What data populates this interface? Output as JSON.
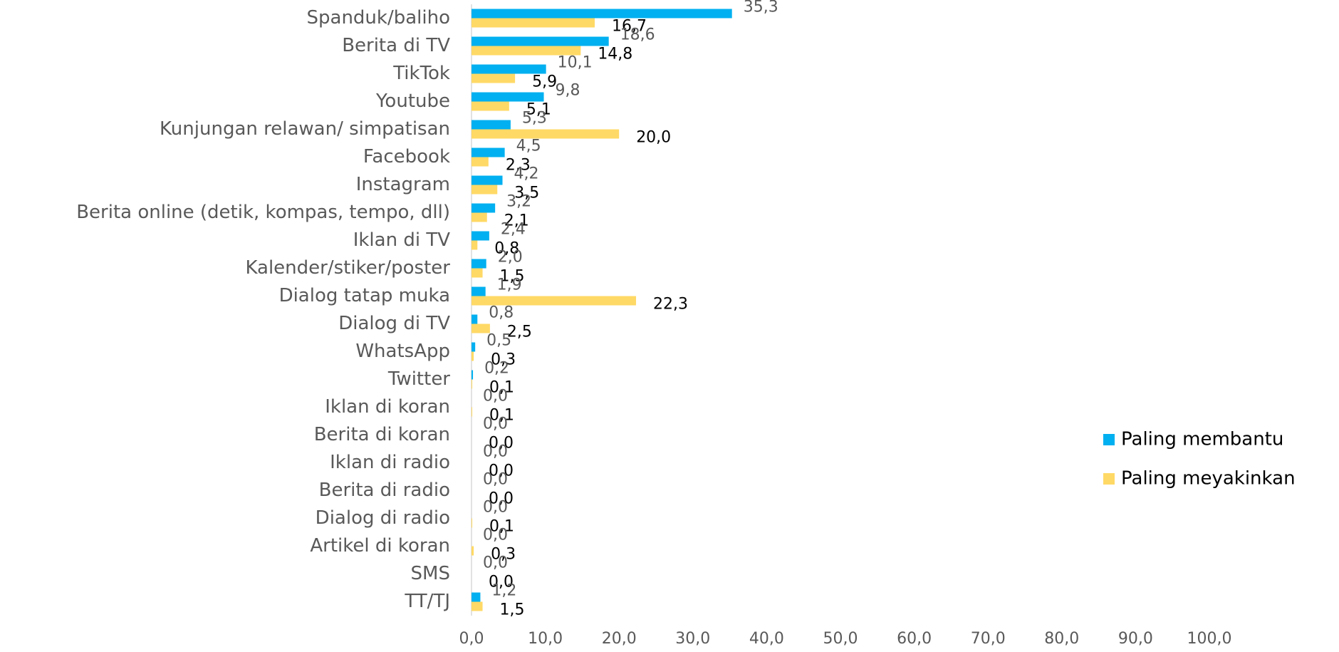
{
  "chart_data": {
    "type": "hbar",
    "categories": [
      "Spanduk/baliho",
      "Berita di TV",
      "TikTok",
      "Youtube",
      "Kunjungan relawan/ simpatisan",
      "Facebook",
      "Instagram",
      "Berita online (detik, kompas, tempo, dll)",
      "Iklan di TV",
      "Kalender/stiker/poster",
      "Dialog tatap muka",
      "Dialog di TV",
      "WhatsApp",
      "Twitter",
      "Iklan di koran",
      "Berita di koran",
      "Iklan di radio",
      "Berita di radio",
      "Dialog di radio",
      "Artikel di koran",
      "SMS",
      "TT/TJ"
    ],
    "series": [
      {
        "name": "Paling membantu",
        "color": "#00b0f0",
        "values": [
          35.3,
          18.6,
          10.1,
          9.8,
          5.3,
          4.5,
          4.2,
          3.2,
          2.4,
          2.0,
          1.9,
          0.8,
          0.5,
          0.2,
          0.0,
          0.0,
          0.0,
          0.0,
          0.0,
          0.0,
          0.0,
          1.2
        ],
        "value_labels": [
          "35,3",
          "18,6",
          "10,1",
          "9,8",
          "5,3",
          "4,5",
          "4,2",
          "3,2",
          "2,4",
          "2,0",
          "1,9",
          "0,8",
          "0,5",
          "0,2",
          "0,0",
          "0,0",
          "0,0",
          "0,0",
          "0,0",
          "0,0",
          "0,0",
          "1,2"
        ]
      },
      {
        "name": "Paling meyakinkan",
        "color": "#ffd966",
        "values": [
          16.7,
          14.8,
          5.9,
          5.1,
          20.0,
          2.3,
          3.5,
          2.1,
          0.8,
          1.5,
          22.3,
          2.5,
          0.3,
          0.1,
          0.1,
          0.0,
          0.0,
          0.0,
          0.1,
          0.3,
          0.0,
          1.5
        ],
        "value_labels": [
          "16,7",
          "14,8",
          "5,9",
          "5,1",
          "20,0",
          "2,3",
          "3,5",
          "2,1",
          "0,8",
          "1,5",
          "22,3",
          "2,5",
          "0,3",
          "0,1",
          "0,1",
          "0,0",
          "0,0",
          "0,0",
          "0,1",
          "0,3",
          "0,0",
          "1,5"
        ]
      }
    ],
    "xlim": [
      0,
      100
    ],
    "xticks": [
      {
        "value": 0,
        "label": "0,0"
      },
      {
        "value": 10,
        "label": "10,0"
      },
      {
        "value": 20,
        "label": "20,0"
      },
      {
        "value": 30,
        "label": "30,0"
      },
      {
        "value": 40,
        "label": "40,0"
      },
      {
        "value": 50,
        "label": "50,0"
      },
      {
        "value": 60,
        "label": "60,0"
      },
      {
        "value": 70,
        "label": "70,0"
      },
      {
        "value": 80,
        "label": "80,0"
      },
      {
        "value": 90,
        "label": "90,0"
      },
      {
        "value": 100,
        "label": "100,0"
      }
    ],
    "legend": "right"
  }
}
